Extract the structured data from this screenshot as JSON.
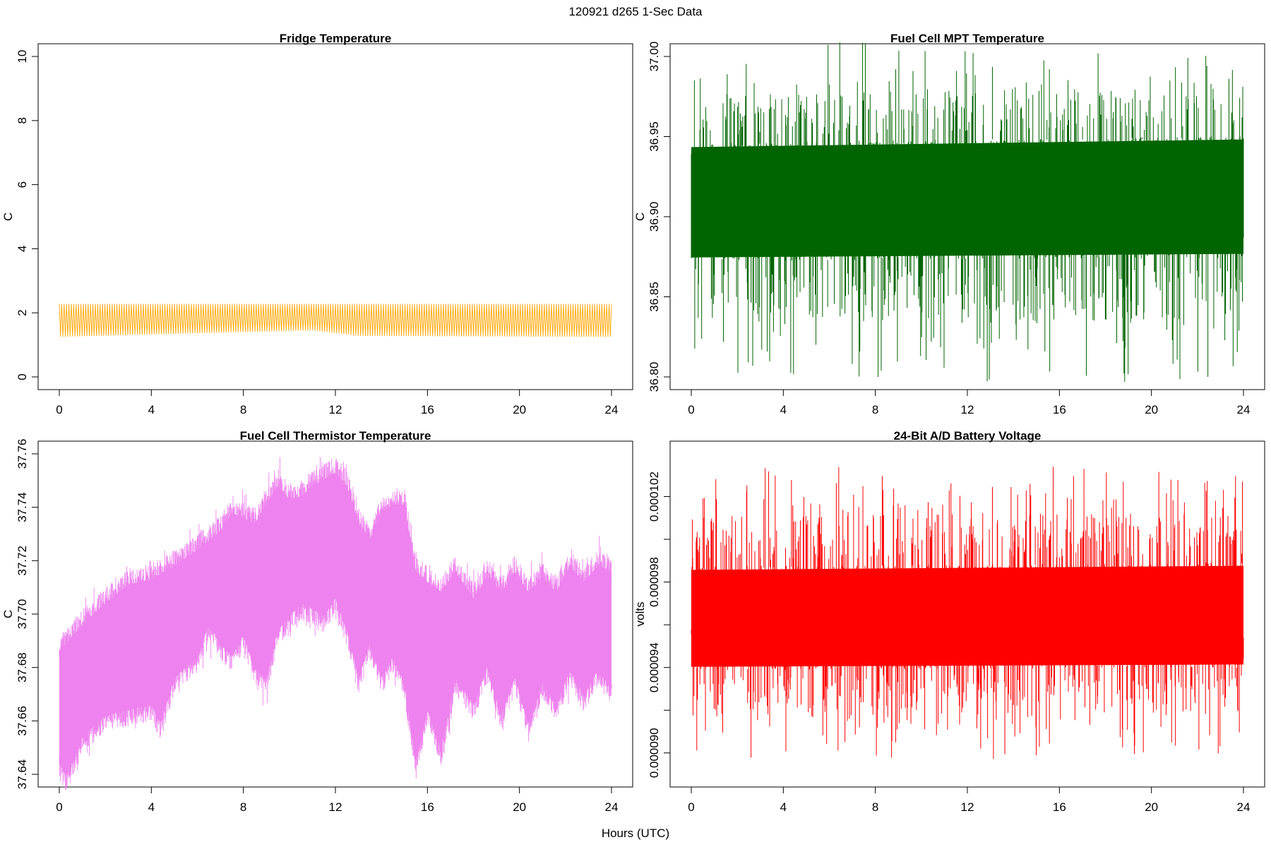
{
  "figure": {
    "title": "120921   d265   1-Sec Data",
    "xlabel": "Hours (UTC)"
  },
  "chart_data": [
    {
      "type": "line",
      "title": "Fridge Temperature",
      "ylabel": "C",
      "color": "#FFA500",
      "xlim": [
        0,
        24
      ],
      "ylim": [
        0,
        10
      ],
      "xticks": [
        0,
        4,
        8,
        12,
        16,
        20,
        24
      ],
      "xtick_labels": [
        "0",
        "4",
        "8",
        "12",
        "16",
        "20",
        "24"
      ],
      "yticks": [
        0,
        2,
        4,
        6,
        8,
        10
      ],
      "ytick_labels": [
        "0",
        "2",
        "4",
        "6",
        "8",
        "10"
      ],
      "series": [
        {
          "name": "fridge-temperature",
          "pattern": "oscillation",
          "x_range": [
            0,
            24
          ],
          "cycles": 230,
          "low": [
            [
              0,
              1.25
            ],
            [
              8,
              1.4
            ],
            [
              11,
              1.45
            ],
            [
              13,
              1.28
            ],
            [
              24,
              1.25
            ]
          ],
          "high": [
            [
              0,
              2.28
            ],
            [
              24,
              2.28
            ]
          ]
        }
      ]
    },
    {
      "type": "line",
      "title": "Fuel Cell MPT Temperature",
      "ylabel": "C",
      "color": "#006400",
      "xlim": [
        0,
        24
      ],
      "ylim": [
        36.8,
        37.0
      ],
      "xticks": [
        0,
        4,
        8,
        12,
        16,
        20,
        24
      ],
      "xtick_labels": [
        "0",
        "4",
        "8",
        "12",
        "16",
        "20",
        "24"
      ],
      "yticks": [
        36.8,
        36.85,
        36.9,
        36.95,
        37.0
      ],
      "ytick_labels": [
        "36.80",
        "36.85",
        "36.90",
        "36.95",
        "37.00"
      ],
      "series": [
        {
          "name": "mpt-temperature",
          "pattern": "noise",
          "x_range": [
            0,
            24
          ],
          "core_low": [
            [
              0,
              36.868
            ],
            [
              24,
              36.87
            ]
          ],
          "core_high": [
            [
              0,
              36.95
            ],
            [
              24,
              36.955
            ]
          ],
          "spike_min": 36.793,
          "spike_max": 37.012
        }
      ]
    },
    {
      "type": "line",
      "title": "Fuel Cell Thermistor Temperature",
      "ylabel": "C",
      "color": "#EE82EE",
      "xlim": [
        0,
        24
      ],
      "ylim": [
        37.64,
        37.76
      ],
      "xticks": [
        0,
        4,
        8,
        12,
        16,
        20,
        24
      ],
      "xtick_labels": [
        "0",
        "4",
        "8",
        "12",
        "16",
        "20",
        "24"
      ],
      "yticks": [
        37.64,
        37.66,
        37.68,
        37.7,
        37.72,
        37.74,
        37.76
      ],
      "ytick_labels": [
        "37.64",
        "37.66",
        "37.68",
        "37.70",
        "37.72",
        "37.74",
        "37.76"
      ],
      "series": [
        {
          "name": "thermistor-temperature",
          "pattern": "envelope",
          "x_range": [
            0,
            24
          ],
          "low": [
            [
              0,
              37.64
            ],
            [
              0.3,
              37.635
            ],
            [
              1,
              37.65
            ],
            [
              2,
              37.658
            ],
            [
              3,
              37.66
            ],
            [
              4,
              37.662
            ],
            [
              4.4,
              37.655
            ],
            [
              5,
              37.672
            ],
            [
              6,
              37.68
            ],
            [
              6.5,
              37.692
            ],
            [
              7,
              37.685
            ],
            [
              7.5,
              37.68
            ],
            [
              8,
              37.688
            ],
            [
              8.5,
              37.675
            ],
            [
              9,
              37.672
            ],
            [
              9.5,
              37.69
            ],
            [
              10,
              37.695
            ],
            [
              10.5,
              37.7
            ],
            [
              11,
              37.698
            ],
            [
              11.5,
              37.695
            ],
            [
              12,
              37.702
            ],
            [
              12.5,
              37.69
            ],
            [
              13,
              37.672
            ],
            [
              13.5,
              37.685
            ],
            [
              14,
              37.672
            ],
            [
              14.5,
              37.68
            ],
            [
              15,
              37.67
            ],
            [
              15.5,
              37.64
            ],
            [
              16,
              37.66
            ],
            [
              16.6,
              37.645
            ],
            [
              17.2,
              37.672
            ],
            [
              18,
              37.662
            ],
            [
              18.6,
              37.676
            ],
            [
              19.2,
              37.658
            ],
            [
              19.8,
              37.672
            ],
            [
              20.4,
              37.655
            ],
            [
              21,
              37.67
            ],
            [
              21.6,
              37.662
            ],
            [
              22.2,
              37.675
            ],
            [
              22.8,
              37.665
            ],
            [
              23.4,
              37.675
            ],
            [
              24,
              37.668
            ]
          ],
          "high": [
            [
              0,
              37.69
            ],
            [
              1,
              37.7
            ],
            [
              2,
              37.708
            ],
            [
              3,
              37.715
            ],
            [
              4,
              37.717
            ],
            [
              5,
              37.722
            ],
            [
              6,
              37.728
            ],
            [
              7,
              37.735
            ],
            [
              7.5,
              37.742
            ],
            [
              8,
              37.74
            ],
            [
              8.5,
              37.738
            ],
            [
              9,
              37.745
            ],
            [
              9.5,
              37.752
            ],
            [
              10,
              37.747
            ],
            [
              10.5,
              37.748
            ],
            [
              11,
              37.752
            ],
            [
              12,
              37.757
            ],
            [
              12.5,
              37.752
            ],
            [
              13,
              37.738
            ],
            [
              13.5,
              37.732
            ],
            [
              14,
              37.742
            ],
            [
              14.5,
              37.745
            ],
            [
              15,
              37.745
            ],
            [
              15.5,
              37.72
            ],
            [
              16,
              37.716
            ],
            [
              16.6,
              37.712
            ],
            [
              17.2,
              37.72
            ],
            [
              18,
              37.71
            ],
            [
              18.6,
              37.718
            ],
            [
              19.2,
              37.712
            ],
            [
              19.8,
              37.72
            ],
            [
              20.4,
              37.712
            ],
            [
              21,
              37.718
            ],
            [
              21.6,
              37.712
            ],
            [
              22.2,
              37.722
            ],
            [
              22.8,
              37.716
            ],
            [
              23.4,
              37.722
            ],
            [
              24,
              37.72
            ]
          ]
        }
      ]
    },
    {
      "type": "line",
      "title": "24-Bit A/D Battery Voltage",
      "ylabel": "volts",
      "color": "#FF0000",
      "xlim": [
        0,
        24
      ],
      "ylim": [
        8.9e-05,
        0.000104
      ],
      "xticks": [
        0,
        4,
        8,
        12,
        16,
        20,
        24
      ],
      "xtick_labels": [
        "0",
        "4",
        "8",
        "12",
        "16",
        "20",
        "24"
      ],
      "yticks": [
        9e-05,
        9.2e-05,
        9.4e-05,
        9.6e-05,
        9.8e-05,
        0.0001,
        0.000102
      ],
      "ytick_labels": [
        "0.000090",
        "",
        "0.000094",
        "",
        "0.000098",
        "",
        "0.000102"
      ],
      "series": [
        {
          "name": "battery-voltage",
          "pattern": "noise",
          "x_range": [
            0,
            24
          ],
          "core_low": [
            [
              0,
              9.36e-05
            ],
            [
              24,
              9.37e-05
            ]
          ],
          "core_high": [
            [
              0,
              9.9e-05
            ],
            [
              24,
              9.92e-05
            ]
          ],
          "spike_min": 8.95e-05,
          "spike_max": 0.0001037
        }
      ]
    }
  ]
}
